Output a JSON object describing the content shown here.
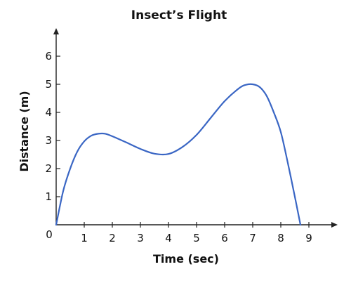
{
  "chart_data": {
    "type": "line",
    "title": "Insect’s Flight",
    "xlabel": "Time (sec)",
    "ylabel": "Distance (m)",
    "xlim": [
      0,
      9.5
    ],
    "ylim": [
      0,
      7
    ],
    "x_ticks": [
      1,
      2,
      3,
      4,
      5,
      6,
      7,
      8,
      9
    ],
    "y_ticks": [
      1,
      2,
      3,
      4,
      5,
      6
    ],
    "origin_label": "0",
    "grid": false,
    "series": [
      {
        "color": "#3a66c4",
        "x": [
          0,
          0.25,
          0.5,
          0.75,
          1.0,
          1.25,
          1.5,
          1.75,
          2.0,
          2.5,
          3.0,
          3.5,
          4.0,
          4.5,
          5.0,
          5.5,
          6.0,
          6.5,
          6.75,
          7.0,
          7.25,
          7.5,
          7.75,
          8.0,
          8.25,
          8.5,
          8.7
        ],
        "y": [
          0,
          1.2,
          2.0,
          2.6,
          2.97,
          3.17,
          3.24,
          3.24,
          3.15,
          2.93,
          2.7,
          2.53,
          2.52,
          2.77,
          3.2,
          3.8,
          4.4,
          4.85,
          4.98,
          5.0,
          4.9,
          4.58,
          4.0,
          3.3,
          2.2,
          1.0,
          0
        ]
      }
    ]
  }
}
